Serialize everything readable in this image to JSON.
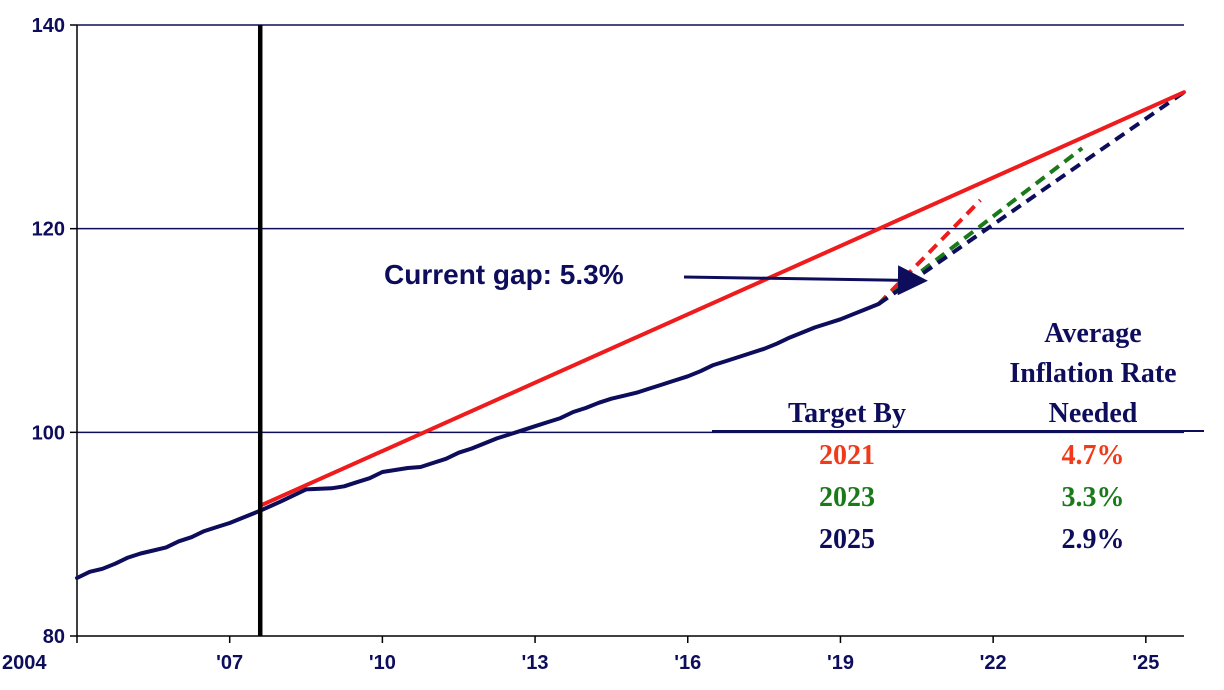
{
  "chart_data": {
    "type": "line",
    "xlim": [
      2004,
      2025.75
    ],
    "ylim": [
      80,
      140
    ],
    "x_ticks": [
      {
        "x": 2004,
        "label": "2004"
      },
      {
        "x": 2007,
        "label": "'07"
      },
      {
        "x": 2010,
        "label": "'10"
      },
      {
        "x": 2013,
        "label": "'13"
      },
      {
        "x": 2016,
        "label": "'16"
      },
      {
        "x": 2019,
        "label": "'19"
      },
      {
        "x": 2022,
        "label": "'22"
      },
      {
        "x": 2025,
        "label": "'25"
      }
    ],
    "y_ticks": [
      {
        "y": 80,
        "label": "80"
      },
      {
        "y": 100,
        "label": "100"
      },
      {
        "y": 120,
        "label": "120"
      },
      {
        "y": 140,
        "label": "140"
      }
    ],
    "gridlines": [
      100,
      120,
      140
    ],
    "vertical_marker_x": 2007.6,
    "series": [
      {
        "color": "#ee1c1c",
        "style": "solid",
        "points": [
          [
            2007.6,
            92.8
          ],
          [
            2025.75,
            133.4
          ]
        ]
      },
      {
        "color": "#0d0d5c",
        "style": "solid",
        "points": [
          [
            2004.0,
            85.7
          ],
          [
            2004.25,
            86.3
          ],
          [
            2004.5,
            86.6
          ],
          [
            2004.75,
            87.1
          ],
          [
            2005.0,
            87.7
          ],
          [
            2005.25,
            88.1
          ],
          [
            2005.5,
            88.4
          ],
          [
            2005.75,
            88.7
          ],
          [
            2006.0,
            89.3
          ],
          [
            2006.25,
            89.7
          ],
          [
            2006.5,
            90.3
          ],
          [
            2006.75,
            90.7
          ],
          [
            2007.0,
            91.1
          ],
          [
            2007.25,
            91.6
          ],
          [
            2007.6,
            92.3
          ],
          [
            2008.0,
            93.2
          ],
          [
            2008.5,
            94.4
          ],
          [
            2009.0,
            94.5
          ],
          [
            2009.25,
            94.7
          ],
          [
            2009.5,
            95.1
          ],
          [
            2009.75,
            95.5
          ],
          [
            2010.0,
            96.1
          ],
          [
            2010.25,
            96.3
          ],
          [
            2010.5,
            96.5
          ],
          [
            2010.75,
            96.6
          ],
          [
            2011.0,
            97.0
          ],
          [
            2011.25,
            97.4
          ],
          [
            2011.5,
            98.0
          ],
          [
            2011.75,
            98.4
          ],
          [
            2012.0,
            98.9
          ],
          [
            2012.25,
            99.4
          ],
          [
            2012.5,
            99.8
          ],
          [
            2012.75,
            100.2
          ],
          [
            2013.0,
            100.6
          ],
          [
            2013.25,
            101.0
          ],
          [
            2013.5,
            101.4
          ],
          [
            2013.75,
            102.0
          ],
          [
            2014.0,
            102.4
          ],
          [
            2014.25,
            102.9
          ],
          [
            2014.5,
            103.3
          ],
          [
            2014.75,
            103.6
          ],
          [
            2015.0,
            103.9
          ],
          [
            2015.25,
            104.3
          ],
          [
            2015.5,
            104.7
          ],
          [
            2015.75,
            105.1
          ],
          [
            2016.0,
            105.5
          ],
          [
            2016.25,
            106.0
          ],
          [
            2016.5,
            106.6
          ],
          [
            2016.75,
            107.0
          ],
          [
            2017.0,
            107.4
          ],
          [
            2017.25,
            107.8
          ],
          [
            2017.5,
            108.2
          ],
          [
            2017.75,
            108.7
          ],
          [
            2018.0,
            109.3
          ],
          [
            2018.25,
            109.8
          ],
          [
            2018.5,
            110.3
          ],
          [
            2018.75,
            110.7
          ],
          [
            2019.0,
            111.1
          ],
          [
            2019.25,
            111.6
          ],
          [
            2019.5,
            112.1
          ],
          [
            2019.75,
            112.6
          ]
        ]
      },
      {
        "color": "#ee1c1c",
        "style": "dashed",
        "points": [
          [
            2019.75,
            112.6
          ],
          [
            2021.75,
            122.8
          ]
        ]
      },
      {
        "color": "#1a7a1a",
        "style": "dashed",
        "points": [
          [
            2019.75,
            112.6
          ],
          [
            2023.75,
            127.9
          ]
        ]
      },
      {
        "color": "#0d0d5c",
        "style": "dashed",
        "points": [
          [
            2019.75,
            112.6
          ],
          [
            2025.75,
            133.4
          ]
        ]
      }
    ],
    "annotation": {
      "text": "Current gap: 5.3%",
      "arrow_to": [
        2020.6,
        114.9
      ]
    },
    "table": {
      "col1_header": "Target By",
      "col2_header": [
        "Average",
        "Inflation Rate",
        "Needed"
      ],
      "rows": [
        {
          "year": "2021",
          "rate": "4.7%",
          "color": "#f03a1a"
        },
        {
          "year": "2023",
          "rate": "3.3%",
          "color": "#1a7a1a"
        },
        {
          "year": "2025",
          "rate": "2.9%",
          "color": "#0d0d5c"
        }
      ]
    }
  }
}
